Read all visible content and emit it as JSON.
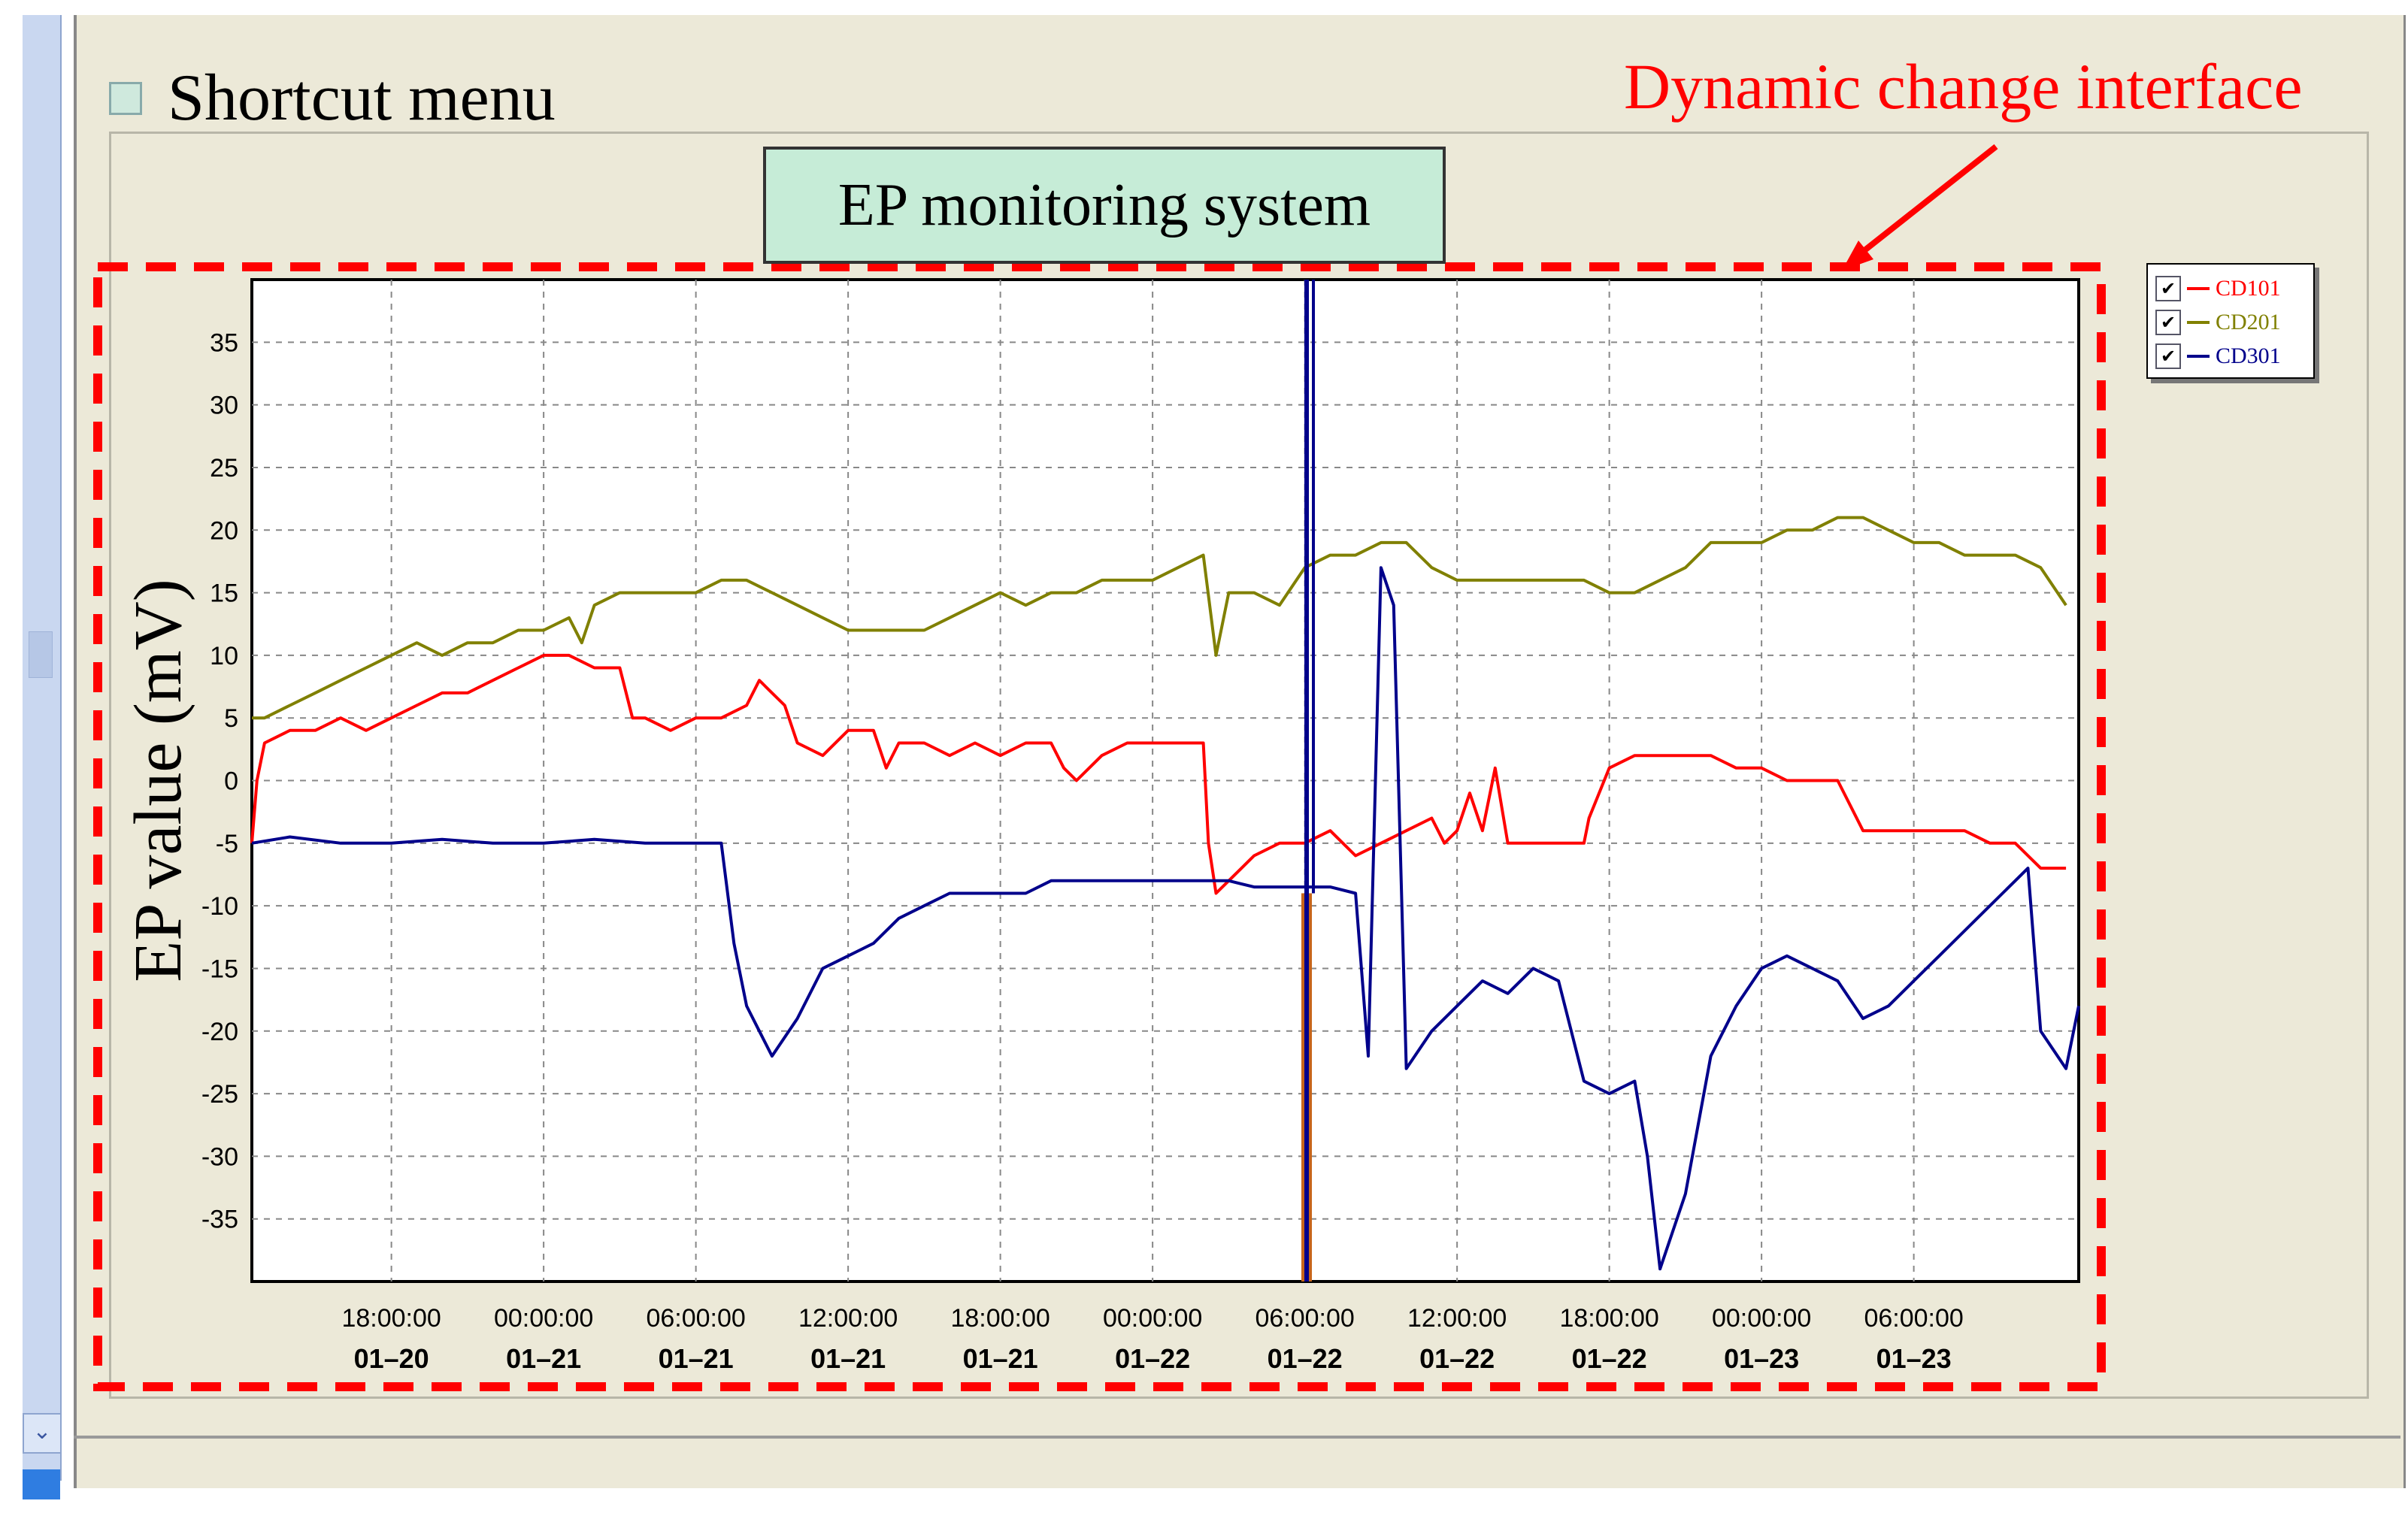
{
  "header": {
    "shortcut_label": "Shortcut menu",
    "annotation": "Dynamic change interface"
  },
  "chart_title": "EP monitoring system",
  "chart_data": {
    "type": "line",
    "title": "EP monitoring system",
    "ylabel": "EP value (mV)",
    "xlabel": "",
    "ylim": [
      -40,
      40
    ],
    "yticks": [
      -35,
      -30,
      -25,
      -20,
      -15,
      -10,
      -5,
      0,
      5,
      10,
      15,
      20,
      25,
      30,
      35
    ],
    "xlim_hours": [
      14.75,
      72.0
    ],
    "xticks": [
      {
        "time": "18:00:00",
        "date": "01–20",
        "h": 18
      },
      {
        "time": "00:00:00",
        "date": "01–21",
        "h": 24
      },
      {
        "time": "06:00:00",
        "date": "01–21",
        "h": 30
      },
      {
        "time": "12:00:00",
        "date": "01–21",
        "h": 36
      },
      {
        "time": "18:00:00",
        "date": "01–21",
        "h": 42
      },
      {
        "time": "00:00:00",
        "date": "01–22",
        "h": 48
      },
      {
        "time": "06:00:00",
        "date": "01–22",
        "h": 54
      },
      {
        "time": "12:00:00",
        "date": "01–22",
        "h": 60
      },
      {
        "time": "18:00:00",
        "date": "01–22",
        "h": 66
      },
      {
        "time": "00:00:00",
        "date": "01–23",
        "h": 72
      },
      {
        "time": "06:00:00",
        "date": "01–23",
        "h": 78
      }
    ],
    "cursor_h": 54.1,
    "grid": true,
    "legend": "right",
    "series": [
      {
        "name": "CD101",
        "color": "#ff0000",
        "points": [
          [
            12.5,
            -5
          ],
          [
            12.7,
            0
          ],
          [
            13,
            3
          ],
          [
            14,
            4
          ],
          [
            15,
            4
          ],
          [
            16,
            5
          ],
          [
            17,
            4
          ],
          [
            18,
            5
          ],
          [
            19,
            6
          ],
          [
            20,
            7
          ],
          [
            21,
            7
          ],
          [
            22,
            8
          ],
          [
            23,
            9
          ],
          [
            24,
            10
          ],
          [
            25,
            10
          ],
          [
            26,
            9
          ],
          [
            27,
            9
          ],
          [
            27.5,
            5
          ],
          [
            28,
            5
          ],
          [
            29,
            4
          ],
          [
            30,
            5
          ],
          [
            31,
            5
          ],
          [
            32,
            6
          ],
          [
            32.5,
            8
          ],
          [
            33,
            7
          ],
          [
            33.5,
            6
          ],
          [
            34,
            3
          ],
          [
            35,
            2
          ],
          [
            36,
            4
          ],
          [
            37,
            4
          ],
          [
            37.5,
            1
          ],
          [
            38,
            3
          ],
          [
            39,
            3
          ],
          [
            40,
            2
          ],
          [
            41,
            3
          ],
          [
            42,
            2
          ],
          [
            43,
            3
          ],
          [
            44,
            3
          ],
          [
            44.5,
            1
          ],
          [
            45,
            0
          ],
          [
            46,
            2
          ],
          [
            47,
            3
          ],
          [
            48,
            3
          ],
          [
            49,
            3
          ],
          [
            50,
            3
          ],
          [
            50.2,
            -5
          ],
          [
            50.5,
            -9
          ],
          [
            51,
            -8
          ],
          [
            52,
            -6
          ],
          [
            53,
            -5
          ],
          [
            54,
            -5
          ],
          [
            55,
            -4
          ],
          [
            56,
            -6
          ],
          [
            57,
            -5
          ],
          [
            58,
            -4
          ],
          [
            59,
            -3
          ],
          [
            59.5,
            -5
          ],
          [
            60,
            -4
          ],
          [
            60.5,
            -1
          ],
          [
            61,
            -4
          ],
          [
            61.5,
            1
          ],
          [
            62,
            -5
          ],
          [
            63,
            -5
          ],
          [
            64,
            -5
          ],
          [
            65,
            -5
          ],
          [
            65.2,
            -3
          ],
          [
            66,
            1
          ],
          [
            67,
            2
          ],
          [
            68,
            2
          ],
          [
            69,
            2
          ],
          [
            70,
            2
          ],
          [
            71,
            1
          ],
          [
            72,
            1
          ],
          [
            73,
            0
          ],
          [
            74,
            0
          ],
          [
            75,
            0
          ],
          [
            76,
            -4
          ],
          [
            77,
            -4
          ],
          [
            78,
            -4
          ],
          [
            79,
            -4
          ],
          [
            80,
            -4
          ],
          [
            81,
            -5
          ],
          [
            82,
            -5
          ],
          [
            83,
            -7
          ],
          [
            84,
            -7
          ]
        ]
      },
      {
        "name": "CD201",
        "color": "#808000",
        "points": [
          [
            12.5,
            5
          ],
          [
            13,
            5
          ],
          [
            14,
            6
          ],
          [
            15,
            7
          ],
          [
            16,
            8
          ],
          [
            17,
            9
          ],
          [
            18,
            10
          ],
          [
            19,
            11
          ],
          [
            20,
            10
          ],
          [
            21,
            11
          ],
          [
            22,
            11
          ],
          [
            23,
            12
          ],
          [
            24,
            12
          ],
          [
            25,
            13
          ],
          [
            25.5,
            11
          ],
          [
            26,
            14
          ],
          [
            27,
            15
          ],
          [
            28,
            15
          ],
          [
            29,
            15
          ],
          [
            30,
            15
          ],
          [
            31,
            16
          ],
          [
            32,
            16
          ],
          [
            33,
            15
          ],
          [
            34,
            14
          ],
          [
            35,
            13
          ],
          [
            36,
            12
          ],
          [
            37,
            12
          ],
          [
            38,
            12
          ],
          [
            39,
            12
          ],
          [
            40,
            13
          ],
          [
            41,
            14
          ],
          [
            42,
            15
          ],
          [
            43,
            14
          ],
          [
            44,
            15
          ],
          [
            45,
            15
          ],
          [
            46,
            16
          ],
          [
            47,
            16
          ],
          [
            48,
            16
          ],
          [
            49,
            17
          ],
          [
            50,
            18
          ],
          [
            50.5,
            10
          ],
          [
            51,
            15
          ],
          [
            52,
            15
          ],
          [
            53,
            14
          ],
          [
            54,
            17
          ],
          [
            55,
            18
          ],
          [
            56,
            18
          ],
          [
            57,
            19
          ],
          [
            58,
            19
          ],
          [
            59,
            17
          ],
          [
            60,
            16
          ],
          [
            61,
            16
          ],
          [
            62,
            16
          ],
          [
            63,
            16
          ],
          [
            64,
            16
          ],
          [
            65,
            16
          ],
          [
            66,
            15
          ],
          [
            67,
            15
          ],
          [
            68,
            16
          ],
          [
            69,
            17
          ],
          [
            70,
            19
          ],
          [
            71,
            19
          ],
          [
            72,
            19
          ],
          [
            73,
            20
          ],
          [
            74,
            20
          ],
          [
            75,
            21
          ],
          [
            76,
            21
          ],
          [
            77,
            20
          ],
          [
            78,
            19
          ],
          [
            79,
            19
          ],
          [
            80,
            18
          ],
          [
            81,
            18
          ],
          [
            82,
            18
          ],
          [
            83,
            17
          ],
          [
            84,
            14
          ]
        ]
      },
      {
        "name": "CD301",
        "color": "#00008b",
        "points": [
          [
            12.5,
            -5
          ],
          [
            14,
            -4.5
          ],
          [
            16,
            -5
          ],
          [
            18,
            -5
          ],
          [
            20,
            -4.7
          ],
          [
            22,
            -5
          ],
          [
            24,
            -5
          ],
          [
            26,
            -4.7
          ],
          [
            28,
            -5
          ],
          [
            30,
            -5
          ],
          [
            31,
            -5
          ],
          [
            31.5,
            -13
          ],
          [
            32,
            -18
          ],
          [
            32.5,
            -20
          ],
          [
            33,
            -22
          ],
          [
            34,
            -19
          ],
          [
            35,
            -15
          ],
          [
            36,
            -14
          ],
          [
            37,
            -13
          ],
          [
            38,
            -11
          ],
          [
            39,
            -10
          ],
          [
            40,
            -9
          ],
          [
            41,
            -9
          ],
          [
            42,
            -9
          ],
          [
            43,
            -9
          ],
          [
            44,
            -8
          ],
          [
            45,
            -8
          ],
          [
            46,
            -8
          ],
          [
            47,
            -8
          ],
          [
            48,
            -8
          ],
          [
            49,
            -8
          ],
          [
            50,
            -8
          ],
          [
            51,
            -8
          ],
          [
            52,
            -8.5
          ],
          [
            53,
            -8.5
          ],
          [
            54,
            -8.5
          ],
          [
            55,
            -8.5
          ],
          [
            56,
            -9
          ],
          [
            56.5,
            -22
          ],
          [
            57,
            17
          ],
          [
            57.5,
            14
          ],
          [
            58,
            -23
          ],
          [
            59,
            -20
          ],
          [
            60,
            -18
          ],
          [
            61,
            -16
          ],
          [
            62,
            -17
          ],
          [
            63,
            -15
          ],
          [
            64,
            -16
          ],
          [
            65,
            -24
          ],
          [
            66,
            -25
          ],
          [
            67,
            -24
          ],
          [
            67.5,
            -30
          ],
          [
            68,
            -39
          ],
          [
            69,
            -33
          ],
          [
            70,
            -22
          ],
          [
            71,
            -18
          ],
          [
            72,
            -15
          ],
          [
            73,
            -14
          ],
          [
            74,
            -15
          ],
          [
            75,
            -16
          ],
          [
            76,
            -19
          ],
          [
            77,
            -18
          ],
          [
            78,
            -16
          ],
          [
            79,
            -14
          ],
          [
            80,
            -12
          ],
          [
            81,
            -10
          ],
          [
            82,
            -8
          ],
          [
            82.5,
            -7
          ],
          [
            83,
            -20
          ],
          [
            84,
            -23
          ],
          [
            84.5,
            -18
          ]
        ]
      }
    ]
  }
}
